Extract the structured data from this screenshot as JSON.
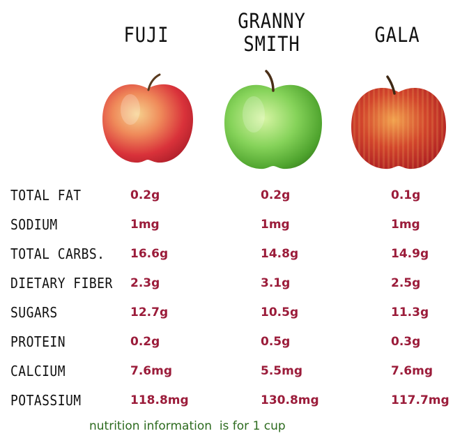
{
  "apples": [
    {
      "name": "FUJI",
      "icon": "red-apple-icon"
    },
    {
      "name": "GRANNY\nSMITH",
      "icon": "green-apple-icon"
    },
    {
      "name": "GALA",
      "icon": "red-apple-icon"
    }
  ],
  "nutrients": [
    {
      "label": "TOTAL FAT",
      "values": [
        "0.2g",
        "0.2g",
        "0.1g"
      ]
    },
    {
      "label": "SODIUM",
      "values": [
        "1mg",
        "1mg",
        "1mg"
      ]
    },
    {
      "label": "TOTAL CARBS.",
      "values": [
        "16.6g",
        "14.8g",
        "14.9g"
      ]
    },
    {
      "label": "DIETARY FIBER",
      "values": [
        "2.3g",
        "3.1g",
        "2.5g"
      ]
    },
    {
      "label": "SUGARS",
      "values": [
        "12.7g",
        "10.5g",
        "11.3g"
      ]
    },
    {
      "label": "PROTEIN",
      "values": [
        "0.2g",
        "0.5g",
        "0.3g"
      ]
    },
    {
      "label": "CALCIUM",
      "values": [
        "7.6mg",
        "5.5mg",
        "7.6mg"
      ]
    },
    {
      "label": "POTASSIUM",
      "values": [
        "118.8mg",
        "130.8mg",
        "117.7mg"
      ]
    }
  ],
  "footnote": "nutrition information  is for 1 cup",
  "colors": {
    "value": "#9b1c3a",
    "footnote": "#2d6b1f",
    "label": "#111111"
  }
}
